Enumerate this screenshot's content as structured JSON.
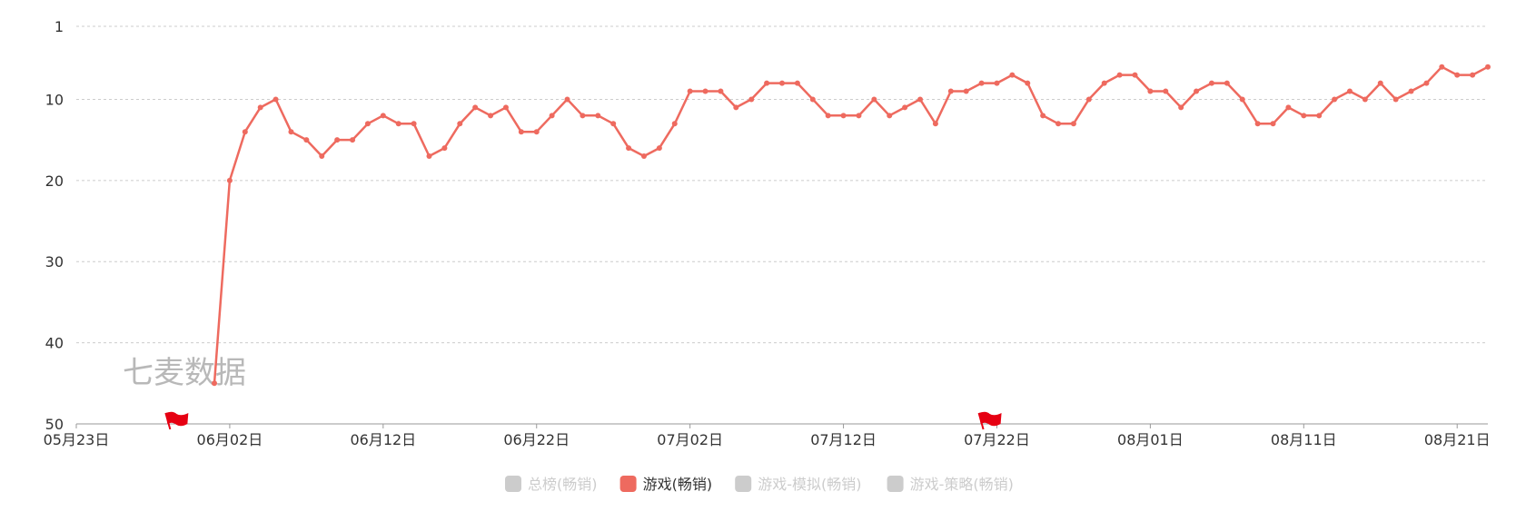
{
  "chart_data": {
    "type": "line",
    "y_inverted": true,
    "ylim": [
      1,
      50
    ],
    "yticks": [
      1,
      10,
      20,
      30,
      40,
      50
    ],
    "xlim": [
      "2021-05-23",
      "2021-08-23"
    ],
    "xticks": [
      "05月23日",
      "06月02日",
      "06月12日",
      "06月22日",
      "07月02日",
      "07月12日",
      "07月22日",
      "08月01日",
      "08月11日",
      "08月21日"
    ],
    "grid": true,
    "legend_position": "bottom",
    "series": [
      {
        "name": "游戏(畅销)",
        "color": "#ee6a5f",
        "x": [
          "2021-06-01",
          "2021-06-02",
          "2021-06-03",
          "2021-06-04",
          "2021-06-05",
          "2021-06-06",
          "2021-06-07",
          "2021-06-08",
          "2021-06-09",
          "2021-06-10",
          "2021-06-11",
          "2021-06-12",
          "2021-06-13",
          "2021-06-14",
          "2021-06-15",
          "2021-06-16",
          "2021-06-17",
          "2021-06-18",
          "2021-06-19",
          "2021-06-20",
          "2021-06-21",
          "2021-06-22",
          "2021-06-23",
          "2021-06-24",
          "2021-06-25",
          "2021-06-26",
          "2021-06-27",
          "2021-06-28",
          "2021-06-29",
          "2021-06-30",
          "2021-07-01",
          "2021-07-02",
          "2021-07-03",
          "2021-07-04",
          "2021-07-05",
          "2021-07-06",
          "2021-07-07",
          "2021-07-08",
          "2021-07-09",
          "2021-07-10",
          "2021-07-11",
          "2021-07-12",
          "2021-07-13",
          "2021-07-14",
          "2021-07-15",
          "2021-07-16",
          "2021-07-17",
          "2021-07-18",
          "2021-07-19",
          "2021-07-20",
          "2021-07-21",
          "2021-07-22",
          "2021-07-23",
          "2021-07-24",
          "2021-07-25",
          "2021-07-26",
          "2021-07-27",
          "2021-07-28",
          "2021-07-29",
          "2021-07-30",
          "2021-07-31",
          "2021-08-01",
          "2021-08-02",
          "2021-08-03",
          "2021-08-04",
          "2021-08-05",
          "2021-08-06",
          "2021-08-07",
          "2021-08-08",
          "2021-08-09",
          "2021-08-10",
          "2021-08-11",
          "2021-08-12",
          "2021-08-13",
          "2021-08-14",
          "2021-08-15",
          "2021-08-16",
          "2021-08-17",
          "2021-08-18",
          "2021-08-19",
          "2021-08-20",
          "2021-08-21",
          "2021-08-22",
          "2021-08-23"
        ],
        "values": [
          45,
          20,
          14,
          11,
          10,
          14,
          15,
          17,
          15,
          15,
          13,
          12,
          13,
          13,
          17,
          16,
          13,
          11,
          12,
          11,
          14,
          14,
          12,
          10,
          12,
          12,
          13,
          16,
          17,
          16,
          13,
          9,
          9,
          9,
          11,
          10,
          8,
          8,
          8,
          10,
          12,
          12,
          12,
          10,
          12,
          11,
          10,
          13,
          9,
          9,
          8,
          8,
          7,
          8,
          12,
          13,
          13,
          10,
          8,
          7,
          7,
          9,
          9,
          11,
          9,
          8,
          8,
          10,
          13,
          13,
          11,
          12,
          12,
          10,
          9,
          10,
          8,
          10,
          9,
          8,
          6,
          7,
          7,
          6
        ]
      }
    ],
    "flags": [
      "2021-05-29",
      "2021-07-21"
    ],
    "watermark": "七麦数据"
  },
  "legend": [
    {
      "label": "总榜(畅销)",
      "active": false,
      "color": "#cccccc"
    },
    {
      "label": "游戏(畅销)",
      "active": true,
      "color": "#ee6a5f"
    },
    {
      "label": "游戏-模拟(畅销)",
      "active": false,
      "color": "#cccccc"
    },
    {
      "label": "游戏-策略(畅销)",
      "active": false,
      "color": "#cccccc"
    }
  ],
  "colors": {
    "grid": "#cccccc",
    "axis": "#999999",
    "flag": "#e60012",
    "inactive_text": "#cccccc",
    "active_text": "#333333"
  }
}
